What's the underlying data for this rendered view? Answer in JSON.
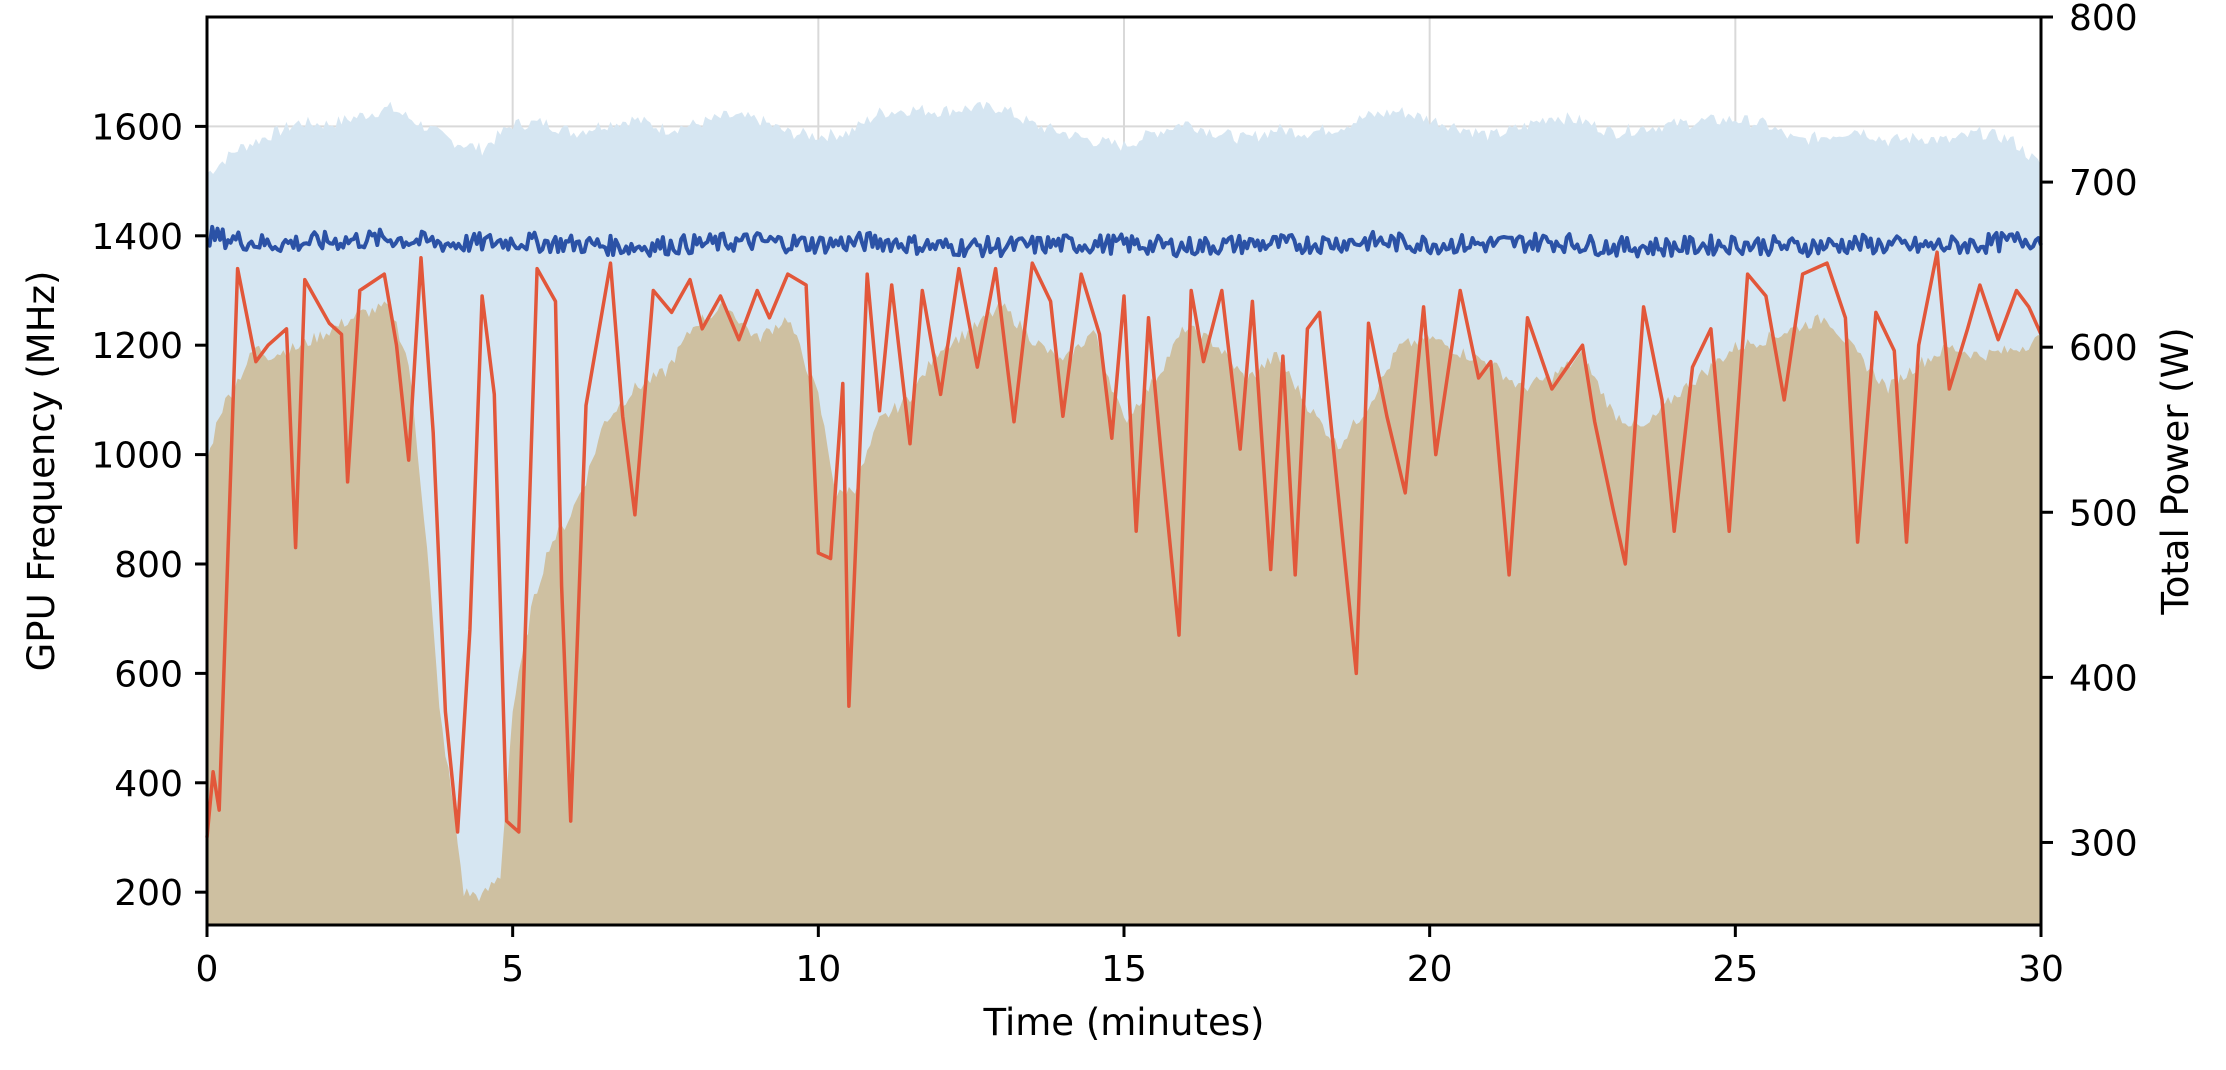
{
  "chart_data": {
    "type": "line",
    "title": "",
    "xlabel": "Time (minutes)",
    "ylabel": "GPU Frequency (MHz)",
    "y2label": "Total Power (W)",
    "xlim": [
      0,
      30
    ],
    "ylim": [
      140,
      1800
    ],
    "y2lim": [
      250,
      800
    ],
    "xticks": [
      0,
      5,
      10,
      15,
      20,
      25,
      30
    ],
    "yticks": [
      200,
      400,
      600,
      800,
      1000,
      1200,
      1400,
      1600
    ],
    "y2ticks": [
      300,
      400,
      500,
      600,
      700,
      800
    ],
    "grid": true,
    "legend": "none",
    "colors": {
      "power_band": "#d6e6f2",
      "power_area": "#cec0a1",
      "frequency_line": "#2b52a6",
      "frequency_actual_line": "#e2573a"
    },
    "series": [
      {
        "axis": "y2",
        "kind": "area",
        "points": [
          [
            0,
            705
          ],
          [
            0.5,
            720
          ],
          [
            1,
            728
          ],
          [
            1.5,
            736
          ],
          [
            2,
            735
          ],
          [
            2.5,
            740
          ],
          [
            3,
            745
          ],
          [
            3.5,
            735
          ],
          [
            4,
            725
          ],
          [
            4.5,
            720
          ],
          [
            5,
            735
          ],
          [
            5.5,
            736
          ],
          [
            6,
            730
          ],
          [
            6.5,
            735
          ],
          [
            7,
            738
          ],
          [
            7.5,
            732
          ],
          [
            8,
            735
          ],
          [
            8.5,
            740
          ],
          [
            9,
            738
          ],
          [
            9.5,
            730
          ],
          [
            10,
            728
          ],
          [
            10.5,
            730
          ],
          [
            11,
            742
          ],
          [
            11.5,
            744
          ],
          [
            12,
            743
          ],
          [
            12.5,
            745
          ],
          [
            13,
            745
          ],
          [
            13.5,
            735
          ],
          [
            14,
            730
          ],
          [
            14.5,
            725
          ],
          [
            15,
            722
          ],
          [
            15.5,
            730
          ],
          [
            16,
            736
          ],
          [
            16.5,
            730
          ],
          [
            17,
            726
          ],
          [
            17.5,
            732
          ],
          [
            18,
            730
          ],
          [
            18.5,
            733
          ],
          [
            19,
            740
          ],
          [
            19.5,
            743
          ],
          [
            20,
            738
          ],
          [
            20.5,
            733
          ],
          [
            21,
            728
          ],
          [
            21.5,
            733
          ],
          [
            22,
            740
          ],
          [
            22.5,
            737
          ],
          [
            23,
            730
          ],
          [
            23.5,
            733
          ],
          [
            24,
            735
          ],
          [
            24.5,
            737
          ],
          [
            25,
            738
          ],
          [
            25.5,
            735
          ],
          [
            26,
            725
          ],
          [
            26.5,
            728
          ],
          [
            27,
            732
          ],
          [
            27.5,
            725
          ],
          [
            28,
            727
          ],
          [
            28.5,
            725
          ],
          [
            29,
            730
          ],
          [
            29.5,
            726
          ],
          [
            30,
            710
          ]
        ]
      },
      {
        "axis": "y2",
        "kind": "area",
        "points": [
          [
            0,
            530
          ],
          [
            0.2,
            560
          ],
          [
            0.5,
            580
          ],
          [
            0.8,
            600
          ],
          [
            1,
            595
          ],
          [
            1.5,
            600
          ],
          [
            2,
            610
          ],
          [
            2.5,
            620
          ],
          [
            3,
            625
          ],
          [
            3.3,
            590
          ],
          [
            3.6,
            480
          ],
          [
            3.8,
            380
          ],
          [
            4,
            330
          ],
          [
            4.2,
            270
          ],
          [
            4.5,
            267
          ],
          [
            4.8,
            280
          ],
          [
            5,
            380
          ],
          [
            5.3,
            440
          ],
          [
            5.6,
            480
          ],
          [
            5.9,
            495
          ],
          [
            6.2,
            520
          ],
          [
            6.5,
            555
          ],
          [
            7,
            575
          ],
          [
            7.5,
            585
          ],
          [
            8,
            615
          ],
          [
            8.5,
            625
          ],
          [
            9,
            605
          ],
          [
            9.5,
            618
          ],
          [
            10,
            570
          ],
          [
            10.3,
            510
          ],
          [
            10.6,
            515
          ],
          [
            11,
            555
          ],
          [
            11.5,
            570
          ],
          [
            12,
            600
          ],
          [
            12.5,
            610
          ],
          [
            13,
            625
          ],
          [
            13.5,
            605
          ],
          [
            14,
            590
          ],
          [
            14.5,
            610
          ],
          [
            15,
            555
          ],
          [
            15.5,
            580
          ],
          [
            16,
            612
          ],
          [
            16.5,
            602
          ],
          [
            17,
            580
          ],
          [
            17.5,
            595
          ],
          [
            18,
            565
          ],
          [
            18.5,
            540
          ],
          [
            19,
            565
          ],
          [
            19.5,
            600
          ],
          [
            20,
            606
          ],
          [
            20.5,
            597
          ],
          [
            21,
            590
          ],
          [
            21.5,
            575
          ],
          [
            22,
            582
          ],
          [
            22.5,
            595
          ],
          [
            23,
            560
          ],
          [
            23.5,
            550
          ],
          [
            24,
            570
          ],
          [
            24.5,
            585
          ],
          [
            25,
            600
          ],
          [
            25.5,
            605
          ],
          [
            26,
            612
          ],
          [
            26.5,
            618
          ],
          [
            27,
            595
          ],
          [
            27.5,
            575
          ],
          [
            28,
            590
          ],
          [
            28.5,
            600
          ],
          [
            29,
            595
          ],
          [
            29.5,
            598
          ],
          [
            30,
            605
          ]
        ]
      },
      {
        "name": "",
        "axis": "y",
        "kind": "line",
        "points": [
          [
            0,
            1400
          ],
          [
            1,
            1385
          ],
          [
            2,
            1390
          ],
          [
            3,
            1395
          ],
          [
            4,
            1385
          ],
          [
            5,
            1390
          ],
          [
            6,
            1385
          ],
          [
            7,
            1380
          ],
          [
            8,
            1385
          ],
          [
            9,
            1390
          ],
          [
            10,
            1385
          ],
          [
            11,
            1390
          ],
          [
            12,
            1380
          ],
          [
            13,
            1380
          ],
          [
            14,
            1385
          ],
          [
            15,
            1385
          ],
          [
            16,
            1380
          ],
          [
            17,
            1385
          ],
          [
            18,
            1385
          ],
          [
            19,
            1390
          ],
          [
            20,
            1385
          ],
          [
            21,
            1385
          ],
          [
            22,
            1390
          ],
          [
            23,
            1380
          ],
          [
            24,
            1380
          ],
          [
            25,
            1385
          ],
          [
            26,
            1380
          ],
          [
            27,
            1385
          ],
          [
            28,
            1380
          ],
          [
            29,
            1385
          ],
          [
            30,
            1395
          ]
        ]
      },
      {
        "name": "",
        "axis": "y",
        "kind": "line",
        "points": [
          [
            0,
            300
          ],
          [
            0.1,
            420
          ],
          [
            0.2,
            350
          ],
          [
            0.5,
            1340
          ],
          [
            0.8,
            1170
          ],
          [
            1,
            1200
          ],
          [
            1.3,
            1230
          ],
          [
            1.45,
            830
          ],
          [
            1.6,
            1320
          ],
          [
            2,
            1240
          ],
          [
            2.2,
            1220
          ],
          [
            2.3,
            950
          ],
          [
            2.5,
            1300
          ],
          [
            2.9,
            1330
          ],
          [
            3.1,
            1200
          ],
          [
            3.3,
            990
          ],
          [
            3.5,
            1360
          ],
          [
            3.7,
            1040
          ],
          [
            3.9,
            530
          ],
          [
            4.1,
            310
          ],
          [
            4.3,
            680
          ],
          [
            4.5,
            1290
          ],
          [
            4.7,
            1110
          ],
          [
            4.9,
            330
          ],
          [
            5.1,
            310
          ],
          [
            5.4,
            1340
          ],
          [
            5.7,
            1280
          ],
          [
            5.8,
            760
          ],
          [
            5.95,
            330
          ],
          [
            6.2,
            1090
          ],
          [
            6.6,
            1350
          ],
          [
            6.8,
            1070
          ],
          [
            7,
            890
          ],
          [
            7.3,
            1300
          ],
          [
            7.6,
            1260
          ],
          [
            7.9,
            1320
          ],
          [
            8.1,
            1230
          ],
          [
            8.4,
            1290
          ],
          [
            8.7,
            1210
          ],
          [
            9,
            1300
          ],
          [
            9.2,
            1250
          ],
          [
            9.5,
            1330
          ],
          [
            9.8,
            1310
          ],
          [
            10,
            820
          ],
          [
            10.2,
            810
          ],
          [
            10.4,
            1130
          ],
          [
            10.5,
            540
          ],
          [
            10.8,
            1330
          ],
          [
            11,
            1080
          ],
          [
            11.2,
            1310
          ],
          [
            11.5,
            1020
          ],
          [
            11.7,
            1300
          ],
          [
            12,
            1110
          ],
          [
            12.3,
            1340
          ],
          [
            12.6,
            1160
          ],
          [
            12.9,
            1340
          ],
          [
            13.2,
            1060
          ],
          [
            13.5,
            1350
          ],
          [
            13.8,
            1280
          ],
          [
            14,
            1070
          ],
          [
            14.3,
            1330
          ],
          [
            14.6,
            1220
          ],
          [
            14.8,
            1030
          ],
          [
            15,
            1290
          ],
          [
            15.2,
            860
          ],
          [
            15.4,
            1250
          ],
          [
            15.6,
            1010
          ],
          [
            15.9,
            670
          ],
          [
            16.1,
            1300
          ],
          [
            16.3,
            1170
          ],
          [
            16.6,
            1300
          ],
          [
            16.9,
            1010
          ],
          [
            17.1,
            1280
          ],
          [
            17.4,
            790
          ],
          [
            17.6,
            1180
          ],
          [
            17.8,
            780
          ],
          [
            18,
            1230
          ],
          [
            18.2,
            1260
          ],
          [
            18.5,
            930
          ],
          [
            18.8,
            600
          ],
          [
            19,
            1240
          ],
          [
            19.3,
            1070
          ],
          [
            19.6,
            930
          ],
          [
            19.9,
            1270
          ],
          [
            20.1,
            1000
          ],
          [
            20.5,
            1300
          ],
          [
            20.8,
            1140
          ],
          [
            21,
            1170
          ],
          [
            21.3,
            780
          ],
          [
            21.6,
            1250
          ],
          [
            22,
            1120
          ],
          [
            22.5,
            1200
          ],
          [
            22.7,
            1060
          ],
          [
            23,
            900
          ],
          [
            23.2,
            800
          ],
          [
            23.5,
            1270
          ],
          [
            23.8,
            1100
          ],
          [
            24,
            860
          ],
          [
            24.3,
            1160
          ],
          [
            24.6,
            1230
          ],
          [
            24.9,
            860
          ],
          [
            25.2,
            1330
          ],
          [
            25.5,
            1290
          ],
          [
            25.8,
            1100
          ],
          [
            26.1,
            1330
          ],
          [
            26.5,
            1350
          ],
          [
            26.8,
            1250
          ],
          [
            27,
            840
          ],
          [
            27.3,
            1260
          ],
          [
            27.6,
            1190
          ],
          [
            27.8,
            840
          ],
          [
            28,
            1200
          ],
          [
            28.3,
            1370
          ],
          [
            28.5,
            1120
          ],
          [
            28.8,
            1230
          ],
          [
            29,
            1310
          ],
          [
            29.3,
            1210
          ],
          [
            29.6,
            1300
          ],
          [
            29.8,
            1270
          ],
          [
            30,
            1220
          ]
        ]
      }
    ]
  }
}
